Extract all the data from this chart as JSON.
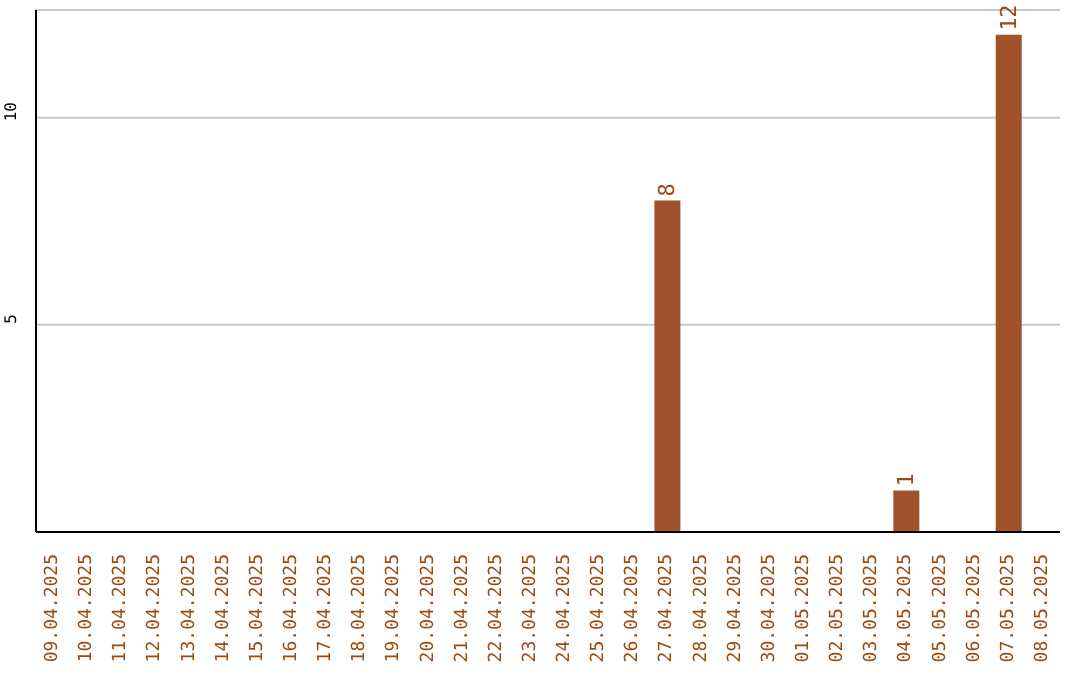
{
  "chart_data": {
    "type": "bar",
    "categories": [
      "09.04.2025",
      "10.04.2025",
      "11.04.2025",
      "12.04.2025",
      "13.04.2025",
      "14.04.2025",
      "15.04.2025",
      "16.04.2025",
      "17.04.2025",
      "18.04.2025",
      "19.04.2025",
      "20.04.2025",
      "21.04.2025",
      "22.04.2025",
      "23.04.2025",
      "24.04.2025",
      "25.04.2025",
      "26.04.2025",
      "27.04.2025",
      "28.04.2025",
      "29.04.2025",
      "30.04.2025",
      "01.05.2025",
      "02.05.2025",
      "03.05.2025",
      "04.05.2025",
      "05.05.2025",
      "06.05.2025",
      "07.05.2025",
      "08.05.2025"
    ],
    "values": [
      0,
      0,
      0,
      0,
      0,
      0,
      0,
      0,
      0,
      0,
      0,
      0,
      0,
      0,
      0,
      0,
      0,
      0,
      8,
      0,
      0,
      0,
      0,
      0,
      0,
      1,
      0,
      0,
      12,
      0
    ],
    "value_labels": [
      null,
      null,
      null,
      null,
      null,
      null,
      null,
      null,
      null,
      null,
      null,
      null,
      null,
      null,
      null,
      null,
      null,
      null,
      "8",
      null,
      null,
      null,
      null,
      null,
      null,
      "1",
      null,
      null,
      "12",
      null
    ],
    "color": "#a0522d",
    "ylim": [
      0,
      12.6
    ],
    "yticks": [
      5,
      10
    ],
    "grid": "y"
  }
}
